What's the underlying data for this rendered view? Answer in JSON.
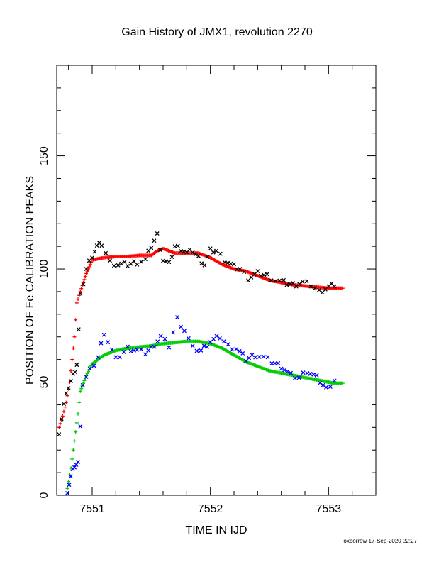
{
  "chart_data": {
    "type": "scatter",
    "title": "Gain History of JMX1, revolution 2270",
    "xlabel": "TIME IN IJD",
    "ylabel": "POSITION OF Fe CALIBRATION PEAKS",
    "xlim": [
      7550.7,
      7553.4
    ],
    "ylim": [
      0,
      190
    ],
    "x_ticks": [
      "7551",
      "7552",
      "7553"
    ],
    "y_ticks": [
      "0",
      "50",
      "100",
      "150"
    ],
    "grid": false,
    "legend": "none",
    "series": [
      {
        "color": "#ff0000",
        "marker": "+",
        "x": [
          7550.72,
          7550.75,
          7550.78,
          7550.81,
          7550.83,
          7550.85,
          7550.87,
          7550.9,
          7550.95,
          7551.0,
          7551.1,
          7551.2,
          7551.3,
          7551.4,
          7551.5,
          7551.55,
          7551.6,
          7551.7,
          7551.8,
          7551.9,
          7552.0,
          7552.1,
          7552.2,
          7552.3,
          7552.4,
          7552.5,
          7552.6,
          7552.7,
          7552.8,
          7552.9,
          7553.0,
          7553.05,
          7553.12
        ],
        "y": [
          30,
          35,
          41,
          50,
          60,
          70,
          85,
          90,
          98,
          104,
          105,
          105.5,
          105.5,
          106,
          106,
          108,
          109,
          107,
          107,
          107,
          105,
          102,
          100,
          99,
          97,
          95,
          94,
          93,
          92.5,
          92,
          91.5,
          91.5,
          91.5
        ]
      },
      {
        "color": "#00cc00",
        "marker": "+",
        "x": [
          7550.79,
          7550.82,
          7550.85,
          7550.88,
          7550.9,
          7550.95,
          7551.0,
          7551.1,
          7551.2,
          7551.3,
          7551.4,
          7551.5,
          7551.6,
          7551.7,
          7551.8,
          7551.9,
          7552.0,
          7552.1,
          7552.2,
          7552.3,
          7552.4,
          7552.5,
          7552.6,
          7552.7,
          7552.8,
          7552.9,
          7553.0,
          7553.05,
          7553.12
        ],
        "y": [
          3,
          12,
          24,
          36,
          46,
          53,
          58,
          62,
          64,
          65,
          65.5,
          66,
          67,
          67.5,
          68,
          68,
          67,
          65,
          62,
          59,
          57,
          55,
          54,
          53,
          52,
          51,
          50,
          49.5,
          49.5
        ]
      },
      {
        "color": "#000000",
        "marker": "x",
        "x": [
          7550.72,
          7550.76,
          7550.8,
          7550.84,
          7550.87,
          7550.9,
          7550.95,
          7551.0,
          7551.04,
          7551.08,
          7551.15,
          7551.22,
          7551.3,
          7551.38,
          7551.45,
          7551.5,
          7551.55,
          7551.6,
          7551.65,
          7551.7,
          7551.75,
          7551.8,
          7551.85,
          7551.9,
          7551.95,
          7552.0,
          7552.05,
          7552.12,
          7552.2,
          7552.25,
          7552.32,
          7552.4,
          7552.48,
          7552.55,
          7552.62,
          7552.7,
          7552.78,
          7552.85,
          7552.92,
          7553.0,
          7553.05
        ],
        "y": [
          28,
          40,
          48,
          53,
          58,
          88,
          100,
          106,
          110,
          111,
          103,
          102,
          102,
          103,
          104,
          110,
          115,
          104,
          102,
          110,
          109,
          107,
          108,
          105,
          102,
          108,
          108,
          104,
          101,
          100,
          96,
          98,
          97,
          95,
          94,
          93,
          94,
          93,
          90,
          92,
          93
        ]
      },
      {
        "color": "#0000ff",
        "marker": "x",
        "x": [
          7550.79,
          7550.82,
          7550.85,
          7550.88,
          7550.92,
          7550.98,
          7551.05,
          7551.1,
          7551.2,
          7551.3,
          7551.38,
          7551.45,
          7551.5,
          7551.58,
          7551.65,
          7551.72,
          7551.78,
          7551.85,
          7551.92,
          7552.0,
          7552.08,
          7552.15,
          7552.22,
          7552.3,
          7552.38,
          7552.45,
          7552.52,
          7552.6,
          7552.68,
          7552.75,
          7552.82,
          7552.9,
          7552.98,
          7553.05
        ],
        "y": [
          2,
          8,
          13,
          14,
          49,
          55,
          61,
          72,
          60,
          65,
          64,
          63,
          65,
          70,
          66,
          78,
          73,
          65,
          64,
          68,
          70,
          66,
          65,
          60,
          62,
          61,
          59,
          57,
          53,
          52,
          55,
          52,
          47,
          51
        ]
      }
    ]
  },
  "footer": "oxborrow 17-Sep-2020 22:27"
}
